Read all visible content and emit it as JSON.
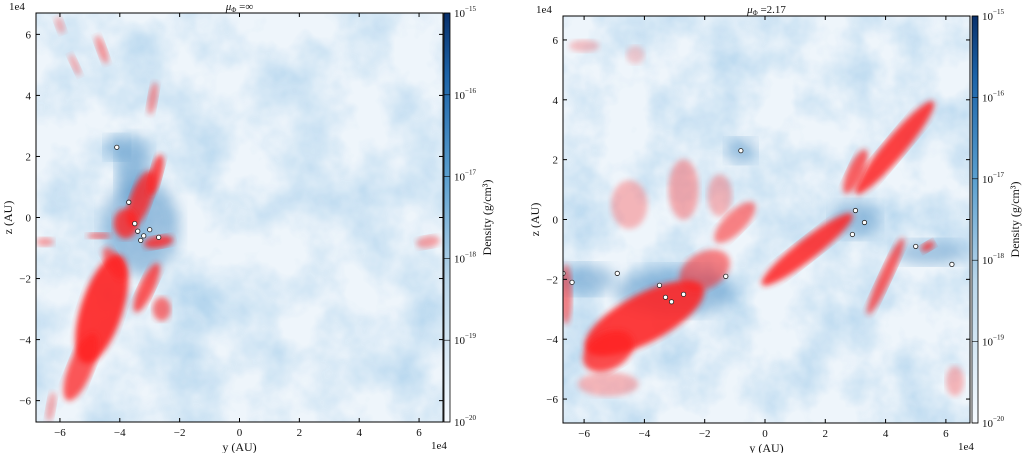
{
  "chart_data": [
    {
      "type": "heatmap",
      "title": "μΦ =∞",
      "title_base": "μ",
      "title_sub": "Φ",
      "title_rest": " =∞",
      "xlabel": "y (AU)",
      "ylabel": "z (AU)",
      "x_scale_label": "1e4",
      "y_scale_label": "1e4",
      "xlim": [
        -6.8,
        6.8
      ],
      "ylim": [
        -6.7,
        6.7
      ],
      "xticks": [
        "-6",
        "-4",
        "-2",
        "0",
        "2",
        "4",
        "6"
      ],
      "yticks": [
        "-6",
        "-4",
        "-2",
        "0",
        "2",
        "4",
        "6"
      ],
      "colorbar": {
        "label": "Density (g/cm³)",
        "scale": "log",
        "range": [
          1e-20,
          1e-15
        ],
        "ticks": [
          "10-20",
          "10-19",
          "10-18",
          "10-17",
          "10-16",
          "10-15"
        ],
        "colors": [
          "#f7fbff",
          "#08306b"
        ]
      },
      "overlay_color": "#ff2020",
      "sink_particles": [
        [
          -4.1,
          2.3
        ],
        [
          -3.7,
          0.5
        ],
        [
          -3.5,
          -0.2
        ],
        [
          -3.4,
          -0.45
        ],
        [
          -3.2,
          -0.6
        ],
        [
          -3.0,
          -0.4
        ],
        [
          -3.3,
          -0.75
        ],
        [
          -2.7,
          -0.65
        ]
      ]
    },
    {
      "type": "heatmap",
      "title": "μΦ =2.17",
      "title_base": "μ",
      "title_sub": "Φ",
      "title_rest": " =2.17",
      "xlabel": "y (AU)",
      "ylabel": "z (AU)",
      "x_scale_label": "1e4",
      "y_scale_label": "1e4",
      "xlim": [
        -6.7,
        6.8
      ],
      "ylim": [
        -6.8,
        6.8
      ],
      "xticks": [
        "-6",
        "-4",
        "-2",
        "0",
        "2",
        "4",
        "6"
      ],
      "yticks": [
        "-6",
        "-4",
        "-2",
        "0",
        "2",
        "4",
        "6"
      ],
      "colorbar": {
        "label": "Density (g/cm³)",
        "scale": "log",
        "range": [
          1e-20,
          1e-15
        ],
        "ticks": [
          "10-20",
          "10-19",
          "10-18",
          "10-17",
          "10-16",
          "10-15"
        ],
        "colors": [
          "#f7fbff",
          "#08306b"
        ]
      },
      "overlay_color": "#ff2020",
      "sink_particles": [
        [
          -0.8,
          2.3
        ],
        [
          3.0,
          0.3
        ],
        [
          3.3,
          -0.1
        ],
        [
          2.9,
          -0.5
        ],
        [
          5.0,
          -0.9
        ],
        [
          6.2,
          -1.5
        ],
        [
          -6.7,
          -1.8
        ],
        [
          -6.4,
          -2.1
        ],
        [
          -4.9,
          -1.8
        ],
        [
          -3.5,
          -2.2
        ],
        [
          -3.3,
          -2.6
        ],
        [
          -3.1,
          -2.75
        ],
        [
          -2.7,
          -2.5
        ],
        [
          -1.3,
          -1.9
        ]
      ]
    }
  ]
}
